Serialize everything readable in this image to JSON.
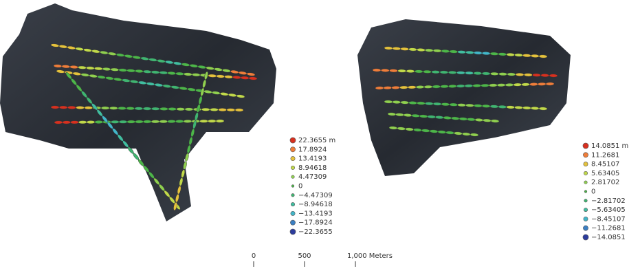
{
  "maps": [
    {
      "legend": [
        {
          "label": "22.3655 m",
          "color": "#d7301f"
        },
        {
          "label": "17.8924",
          "color": "#ef7d3a"
        },
        {
          "label": "13.4193",
          "color": "#e5c23c"
        },
        {
          "label": "8.94618",
          "color": "#c1d94a"
        },
        {
          "label": "4.47309",
          "color": "#8fcf4f"
        },
        {
          "label": "0",
          "color": "#4cb649"
        },
        {
          "label": "−4.47309",
          "color": "#3fb471"
        },
        {
          "label": "−8.94618",
          "color": "#40bea0"
        },
        {
          "label": "−13.4193",
          "color": "#41b6c9"
        },
        {
          "label": "−17.8924",
          "color": "#3c7fc2"
        },
        {
          "label": "−22.3655",
          "color": "#2c3c9c"
        }
      ]
    },
    {
      "legend": [
        {
          "label": "14.0851 m",
          "color": "#d7301f"
        },
        {
          "label": "11.2681",
          "color": "#ef7d3a"
        },
        {
          "label": "8.45107",
          "color": "#e5c23c"
        },
        {
          "label": "5.63405",
          "color": "#c1d94a"
        },
        {
          "label": "2.81702",
          "color": "#8fcf4f"
        },
        {
          "label": "0",
          "color": "#4cb649"
        },
        {
          "label": "−2.81702",
          "color": "#3fb471"
        },
        {
          "label": "−5.63405",
          "color": "#40bea0"
        },
        {
          "label": "−8.45107",
          "color": "#41b6c9"
        },
        {
          "label": "−11.2681",
          "color": "#3c7fc2"
        },
        {
          "label": "−14.0851",
          "color": "#2c3c9c"
        }
      ]
    }
  ],
  "scale_bar": {
    "labels": [
      "0",
      "500",
      "1,000 Meters"
    ]
  }
}
